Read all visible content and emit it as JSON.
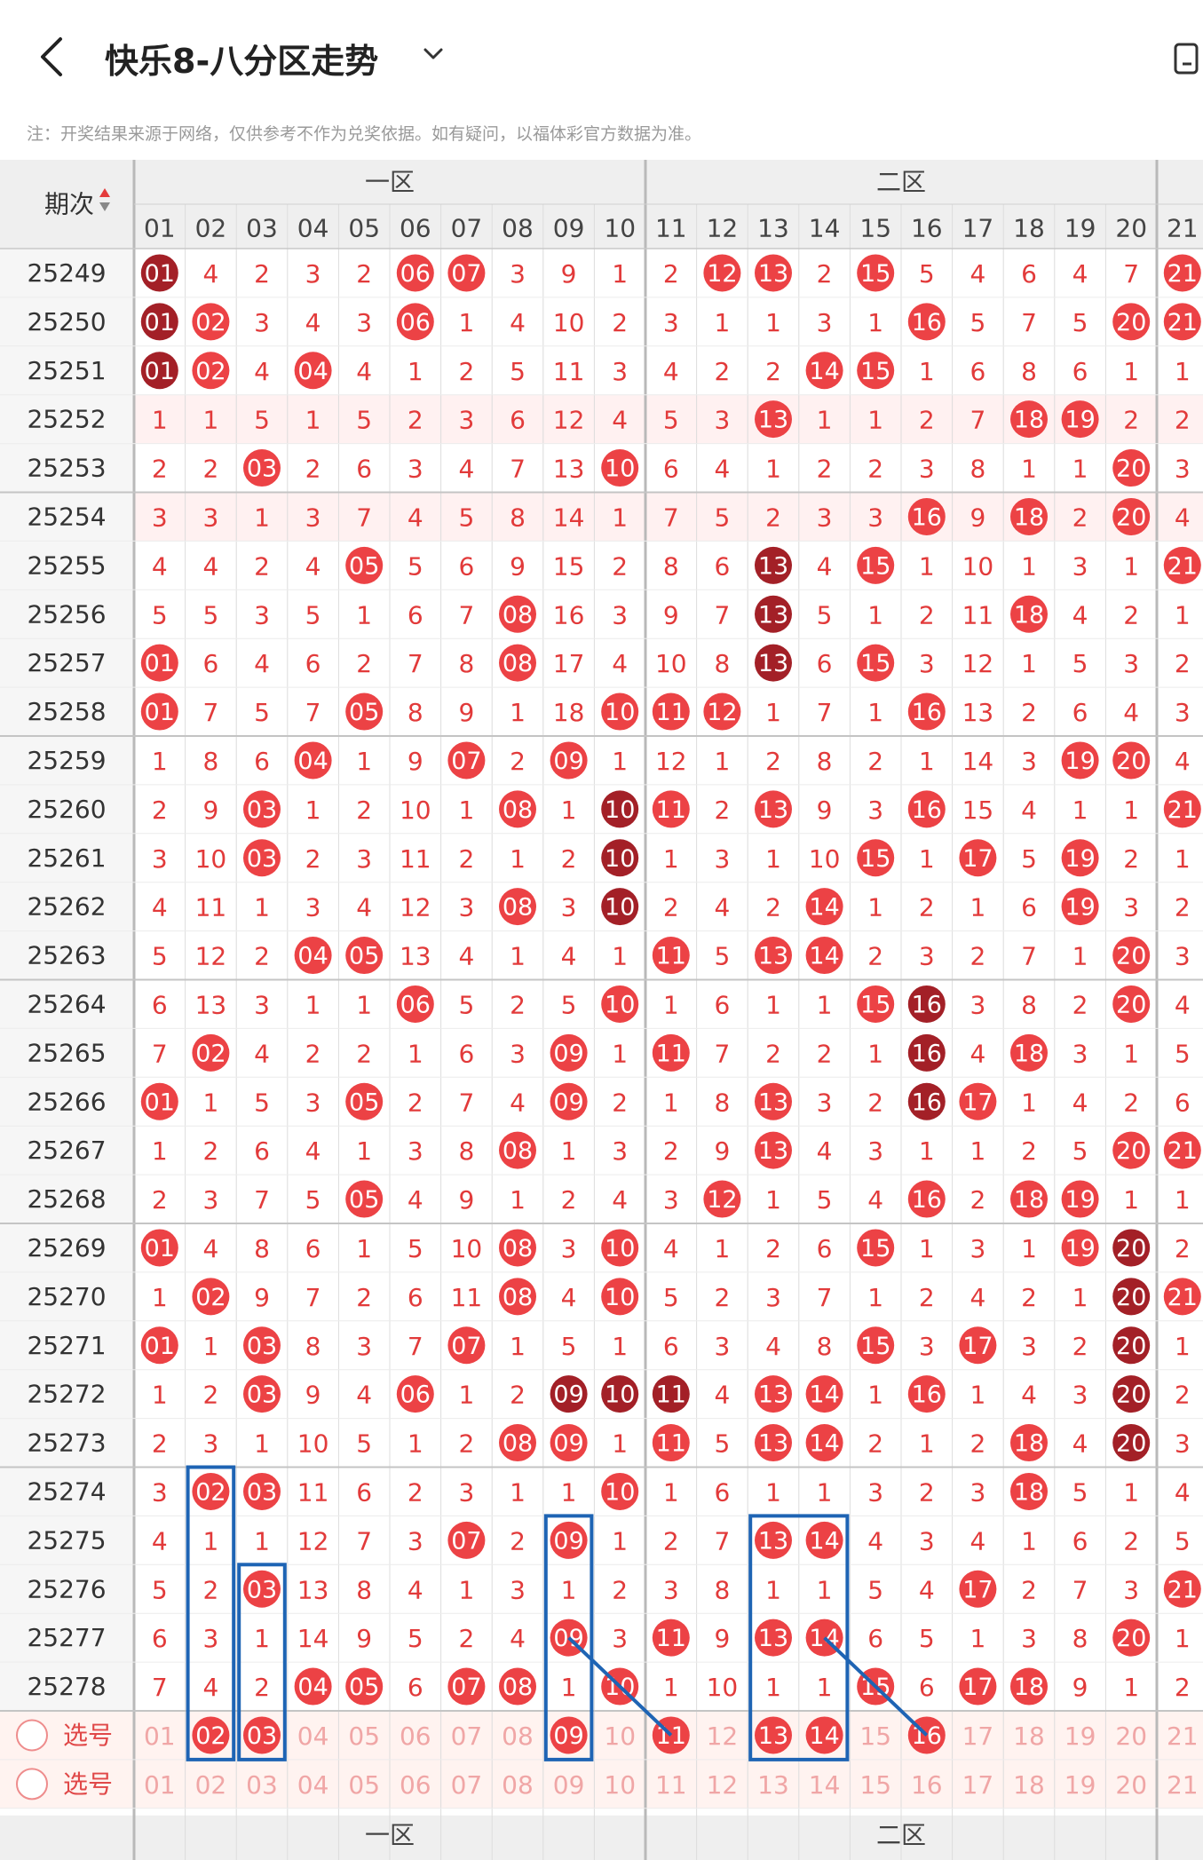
{
  "header": {
    "title": "快乐8-八分区走势",
    "back_icon": "chevron-left-icon",
    "dropdown_icon": "chevron-down-icon",
    "share_icon": "share-icon"
  },
  "notice": "注：开奖结果来源于网络，仅供参考不作为兑奖依据。如有疑问，以福体彩官方数据为准。",
  "table": {
    "issue_header": "期次",
    "sort_icon": "sort-icon",
    "zones": [
      "一区",
      "二区"
    ],
    "columns": [
      "01",
      "02",
      "03",
      "04",
      "05",
      "06",
      "07",
      "08",
      "09",
      "10",
      "11",
      "12",
      "13",
      "14",
      "15",
      "16",
      "17",
      "18",
      "19",
      "20",
      "21"
    ],
    "issues": [
      "25249",
      "25250",
      "25251",
      "25252",
      "25253",
      "25254",
      "25255",
      "25256",
      "25257",
      "25258",
      "25259",
      "25260",
      "25261",
      "25262",
      "25263",
      "25264",
      "25265",
      "25266",
      "25267",
      "25268",
      "25269",
      "25270",
      "25271",
      "25272",
      "25273",
      "25274",
      "25275",
      "25276",
      "25277",
      "25278"
    ],
    "rows": [
      [
        "01",
        "4",
        "2",
        "3",
        "2",
        "06",
        "07",
        "3",
        "9",
        "1",
        "2",
        "12",
        "13",
        "2",
        "15",
        "5",
        "4",
        "6",
        "4",
        "7",
        "21"
      ],
      [
        "01",
        "02",
        "3",
        "4",
        "3",
        "06",
        "1",
        "4",
        "10",
        "2",
        "3",
        "1",
        "1",
        "3",
        "1",
        "16",
        "5",
        "7",
        "5",
        "20",
        "21"
      ],
      [
        "01",
        "02",
        "4",
        "04",
        "4",
        "1",
        "2",
        "5",
        "11",
        "3",
        "4",
        "2",
        "2",
        "14",
        "15",
        "1",
        "6",
        "8",
        "6",
        "1",
        "1"
      ],
      [
        "1",
        "1",
        "5",
        "1",
        "5",
        "2",
        "3",
        "6",
        "12",
        "4",
        "5",
        "3",
        "13",
        "1",
        "1",
        "2",
        "7",
        "18",
        "19",
        "2",
        "2"
      ],
      [
        "2",
        "2",
        "03",
        "2",
        "6",
        "3",
        "4",
        "7",
        "13",
        "10",
        "6",
        "4",
        "1",
        "2",
        "2",
        "3",
        "8",
        "1",
        "1",
        "20",
        "3"
      ],
      [
        "3",
        "3",
        "1",
        "3",
        "7",
        "4",
        "5",
        "8",
        "14",
        "1",
        "7",
        "5",
        "2",
        "3",
        "3",
        "16",
        "9",
        "18",
        "2",
        "20",
        "4"
      ],
      [
        "4",
        "4",
        "2",
        "4",
        "05",
        "5",
        "6",
        "9",
        "15",
        "2",
        "8",
        "6",
        "13",
        "4",
        "15",
        "1",
        "10",
        "1",
        "3",
        "1",
        "21"
      ],
      [
        "5",
        "5",
        "3",
        "5",
        "1",
        "6",
        "7",
        "08",
        "16",
        "3",
        "9",
        "7",
        "13",
        "5",
        "1",
        "2",
        "11",
        "18",
        "4",
        "2",
        "1"
      ],
      [
        "01",
        "6",
        "4",
        "6",
        "2",
        "7",
        "8",
        "08",
        "17",
        "4",
        "10",
        "8",
        "13",
        "6",
        "15",
        "3",
        "12",
        "1",
        "5",
        "3",
        "2"
      ],
      [
        "01",
        "7",
        "5",
        "7",
        "05",
        "8",
        "9",
        "1",
        "18",
        "10",
        "11",
        "12",
        "1",
        "7",
        "1",
        "16",
        "13",
        "2",
        "6",
        "4",
        "3"
      ],
      [
        "1",
        "8",
        "6",
        "04",
        "1",
        "9",
        "07",
        "2",
        "09",
        "1",
        "12",
        "1",
        "2",
        "8",
        "2",
        "1",
        "14",
        "3",
        "19",
        "20",
        "4"
      ],
      [
        "2",
        "9",
        "03",
        "1",
        "2",
        "10",
        "1",
        "08",
        "1",
        "10",
        "11",
        "2",
        "13",
        "9",
        "3",
        "16",
        "15",
        "4",
        "1",
        "1",
        "21"
      ],
      [
        "3",
        "10",
        "03",
        "2",
        "3",
        "11",
        "2",
        "1",
        "2",
        "10",
        "1",
        "3",
        "1",
        "10",
        "15",
        "1",
        "17",
        "5",
        "19",
        "2",
        "1"
      ],
      [
        "4",
        "11",
        "1",
        "3",
        "4",
        "12",
        "3",
        "08",
        "3",
        "10",
        "2",
        "4",
        "2",
        "14",
        "1",
        "2",
        "1",
        "6",
        "19",
        "3",
        "2"
      ],
      [
        "5",
        "12",
        "2",
        "04",
        "05",
        "13",
        "4",
        "1",
        "4",
        "1",
        "11",
        "5",
        "13",
        "14",
        "2",
        "3",
        "2",
        "7",
        "1",
        "20",
        "3"
      ],
      [
        "6",
        "13",
        "3",
        "1",
        "1",
        "06",
        "5",
        "2",
        "5",
        "10",
        "1",
        "6",
        "1",
        "1",
        "15",
        "16",
        "3",
        "8",
        "2",
        "20",
        "4"
      ],
      [
        "7",
        "02",
        "4",
        "2",
        "2",
        "1",
        "6",
        "3",
        "09",
        "1",
        "11",
        "7",
        "2",
        "2",
        "1",
        "16",
        "4",
        "18",
        "3",
        "1",
        "5"
      ],
      [
        "01",
        "1",
        "5",
        "3",
        "05",
        "2",
        "7",
        "4",
        "09",
        "2",
        "1",
        "8",
        "13",
        "3",
        "2",
        "16",
        "17",
        "1",
        "4",
        "2",
        "6"
      ],
      [
        "1",
        "2",
        "6",
        "4",
        "1",
        "3",
        "8",
        "08",
        "1",
        "3",
        "2",
        "9",
        "13",
        "4",
        "3",
        "1",
        "1",
        "2",
        "5",
        "20",
        "21"
      ],
      [
        "2",
        "3",
        "7",
        "5",
        "05",
        "4",
        "9",
        "1",
        "2",
        "4",
        "3",
        "12",
        "1",
        "5",
        "4",
        "16",
        "2",
        "18",
        "19",
        "1",
        "1"
      ],
      [
        "01",
        "4",
        "8",
        "6",
        "1",
        "5",
        "10",
        "08",
        "3",
        "10",
        "4",
        "1",
        "2",
        "6",
        "15",
        "1",
        "3",
        "1",
        "19",
        "20",
        "2"
      ],
      [
        "1",
        "02",
        "9",
        "7",
        "2",
        "6",
        "11",
        "08",
        "4",
        "10",
        "5",
        "2",
        "3",
        "7",
        "1",
        "2",
        "4",
        "2",
        "1",
        "20",
        "21"
      ],
      [
        "01",
        "1",
        "03",
        "8",
        "3",
        "7",
        "07",
        "1",
        "5",
        "1",
        "6",
        "3",
        "4",
        "8",
        "15",
        "3",
        "17",
        "3",
        "2",
        "20",
        "1"
      ],
      [
        "1",
        "2",
        "03",
        "9",
        "4",
        "06",
        "1",
        "2",
        "09",
        "10",
        "11",
        "4",
        "13",
        "14",
        "1",
        "16",
        "1",
        "4",
        "3",
        "20",
        "2"
      ],
      [
        "2",
        "3",
        "1",
        "10",
        "5",
        "1",
        "2",
        "08",
        "09",
        "1",
        "11",
        "5",
        "13",
        "14",
        "2",
        "1",
        "2",
        "18",
        "4",
        "20",
        "3"
      ],
      [
        "3",
        "02",
        "03",
        "11",
        "6",
        "2",
        "3",
        "1",
        "1",
        "10",
        "1",
        "6",
        "1",
        "1",
        "3",
        "2",
        "3",
        "18",
        "5",
        "1",
        "4"
      ],
      [
        "4",
        "1",
        "1",
        "12",
        "7",
        "3",
        "07",
        "2",
        "09",
        "1",
        "2",
        "7",
        "13",
        "14",
        "4",
        "3",
        "4",
        "1",
        "6",
        "2",
        "5"
      ],
      [
        "5",
        "2",
        "03",
        "13",
        "8",
        "4",
        "1",
        "3",
        "1",
        "2",
        "3",
        "8",
        "1",
        "1",
        "5",
        "4",
        "17",
        "2",
        "7",
        "3",
        "21"
      ],
      [
        "6",
        "3",
        "1",
        "14",
        "9",
        "5",
        "2",
        "4",
        "09",
        "3",
        "11",
        "9",
        "13",
        "14",
        "6",
        "5",
        "1",
        "3",
        "8",
        "20",
        "1"
      ],
      [
        "7",
        "4",
        "2",
        "04",
        "05",
        "6",
        "07",
        "08",
        "1",
        "10",
        "1",
        "10",
        "1",
        "1",
        "15",
        "6",
        "17",
        "18",
        "9",
        "1",
        "2"
      ]
    ],
    "dark_hits": [
      [
        0,
        0
      ],
      [
        1,
        0
      ],
      [
        2,
        0
      ],
      [
        6,
        12
      ],
      [
        7,
        12
      ],
      [
        8,
        12
      ],
      [
        11,
        9
      ],
      [
        12,
        9
      ],
      [
        13,
        9
      ],
      [
        15,
        15
      ],
      [
        16,
        15
      ],
      [
        17,
        15
      ],
      [
        20,
        19
      ],
      [
        21,
        19
      ],
      [
        22,
        19
      ],
      [
        23,
        8
      ],
      [
        23,
        9
      ],
      [
        23,
        10
      ],
      [
        23,
        19
      ],
      [
        24,
        19
      ]
    ],
    "select_rows": [
      {
        "label": "选号",
        "highlight": [
          "02",
          "03",
          "09",
          "11",
          "13",
          "14",
          "16"
        ]
      },
      {
        "label": "选号",
        "highlight": []
      }
    ],
    "colors": {
      "hit_red": "#ec4245",
      "hit_dark": "#a32027",
      "miss_text": "#e23a3a",
      "pink_row": "#fff1f1",
      "select_bg": "#fff3f0",
      "header_bg": "#efefef",
      "annotation_blue": "#1e64b4"
    }
  }
}
